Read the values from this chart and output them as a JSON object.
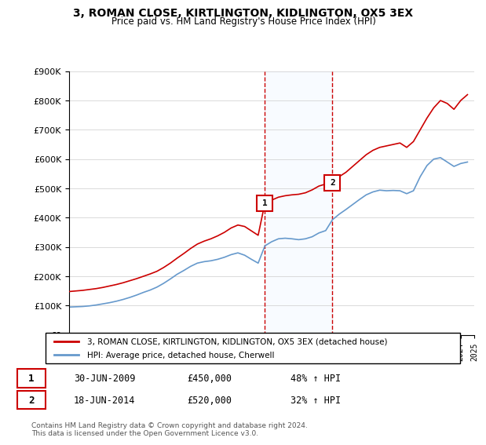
{
  "title": "3, ROMAN CLOSE, KIRTLINGTON, KIDLINGTON, OX5 3EX",
  "subtitle": "Price paid vs. HM Land Registry's House Price Index (HPI)",
  "legend_property": "3, ROMAN CLOSE, KIRTLINGTON, KIDLINGTON, OX5 3EX (detached house)",
  "legend_hpi": "HPI: Average price, detached house, Cherwell",
  "footer": "Contains HM Land Registry data © Crown copyright and database right 2024.\nThis data is licensed under the Open Government Licence v3.0.",
  "sale1_date": "30-JUN-2009",
  "sale1_price": "£450,000",
  "sale1_hpi": "48% ↑ HPI",
  "sale2_date": "18-JUN-2014",
  "sale2_price": "£520,000",
  "sale2_hpi": "32% ↑ HPI",
  "sale1_year": 2009.5,
  "sale1_value": 450000,
  "sale2_year": 2014.5,
  "sale2_value": 520000,
  "property_color": "#cc0000",
  "hpi_color": "#6699cc",
  "sale_marker_color": "#cc0000",
  "shaded_region_color": "#ddeeff",
  "ylim": [
    0,
    900000
  ],
  "xlim_start": 1995,
  "xlim_end": 2025,
  "property_line": {
    "years": [
      1995.0,
      1995.5,
      1996.0,
      1996.5,
      1997.0,
      1997.5,
      1998.0,
      1998.5,
      1999.0,
      1999.5,
      2000.0,
      2000.5,
      2001.0,
      2001.5,
      2002.0,
      2002.5,
      2003.0,
      2003.5,
      2004.0,
      2004.5,
      2005.0,
      2005.5,
      2006.0,
      2006.5,
      2007.0,
      2007.5,
      2008.0,
      2008.5,
      2009.0,
      2009.5,
      2010.0,
      2010.5,
      2011.0,
      2011.5,
      2012.0,
      2012.5,
      2013.0,
      2013.5,
      2014.0,
      2014.5,
      2015.0,
      2015.5,
      2016.0,
      2016.5,
      2017.0,
      2017.5,
      2018.0,
      2018.5,
      2019.0,
      2019.5,
      2020.0,
      2020.5,
      2021.0,
      2021.5,
      2022.0,
      2022.5,
      2023.0,
      2023.5,
      2024.0,
      2024.5
    ],
    "values": [
      148000,
      150000,
      152000,
      155000,
      158000,
      162000,
      167000,
      172000,
      178000,
      185000,
      192000,
      200000,
      208000,
      217000,
      230000,
      245000,
      262000,
      278000,
      295000,
      310000,
      320000,
      328000,
      338000,
      350000,
      365000,
      375000,
      370000,
      355000,
      340000,
      450000,
      460000,
      470000,
      475000,
      478000,
      480000,
      485000,
      495000,
      508000,
      515000,
      520000,
      540000,
      555000,
      575000,
      595000,
      615000,
      630000,
      640000,
      645000,
      650000,
      655000,
      640000,
      660000,
      700000,
      740000,
      775000,
      800000,
      790000,
      770000,
      800000,
      820000
    ]
  },
  "hpi_line": {
    "years": [
      1995.0,
      1995.5,
      1996.0,
      1996.5,
      1997.0,
      1997.5,
      1998.0,
      1998.5,
      1999.0,
      1999.5,
      2000.0,
      2000.5,
      2001.0,
      2001.5,
      2002.0,
      2002.5,
      2003.0,
      2003.5,
      2004.0,
      2004.5,
      2005.0,
      2005.5,
      2006.0,
      2006.5,
      2007.0,
      2007.5,
      2008.0,
      2008.5,
      2009.0,
      2009.5,
      2010.0,
      2010.5,
      2011.0,
      2011.5,
      2012.0,
      2012.5,
      2013.0,
      2013.5,
      2014.0,
      2014.5,
      2015.0,
      2015.5,
      2016.0,
      2016.5,
      2017.0,
      2017.5,
      2018.0,
      2018.5,
      2019.0,
      2019.5,
      2020.0,
      2020.5,
      2021.0,
      2021.5,
      2022.0,
      2022.5,
      2023.0,
      2023.5,
      2024.0,
      2024.5
    ],
    "values": [
      95000,
      96000,
      97000,
      99000,
      102000,
      106000,
      110000,
      115000,
      121000,
      128000,
      136000,
      145000,
      153000,
      163000,
      176000,
      191000,
      207000,
      220000,
      234000,
      245000,
      250000,
      253000,
      258000,
      265000,
      274000,
      280000,
      272000,
      258000,
      245000,
      304000,
      318000,
      328000,
      330000,
      328000,
      325000,
      328000,
      335000,
      348000,
      356000,
      393000,
      412000,
      428000,
      445000,
      462000,
      478000,
      488000,
      494000,
      492000,
      493000,
      492000,
      482000,
      492000,
      540000,
      578000,
      600000,
      605000,
      590000,
      575000,
      585000,
      590000
    ]
  }
}
